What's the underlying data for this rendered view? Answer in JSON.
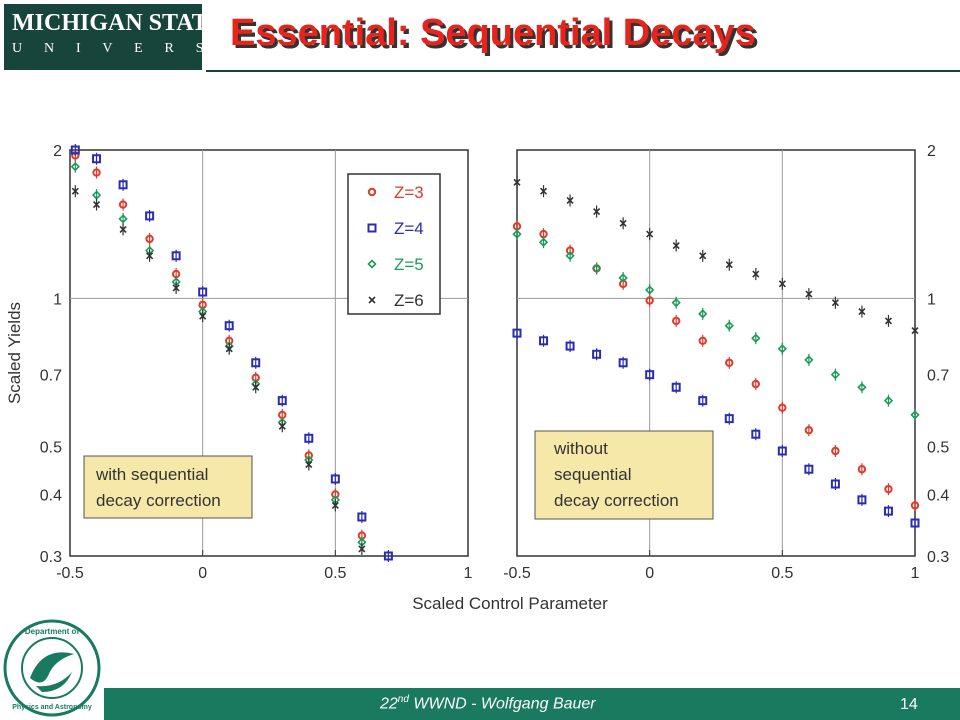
{
  "header": {
    "logo_line1": "MICHIGAN STATE",
    "logo_line2": "U N I V E R S I T Y",
    "title": "Essential: Sequential Decays"
  },
  "footer": {
    "edition": "22",
    "edition_suffix": "nd",
    "rest": " WWND - Wolfgang Bauer",
    "page": "14"
  },
  "seal": {
    "text": "Department of Physics and Astronomy"
  },
  "colors": {
    "Z=3": "#e03a2a",
    "Z=4": "#2b2db0",
    "Z=5": "#1d9a5a",
    "Z=6": "#333333",
    "brand": "#18453b",
    "footer": "#1a7a60",
    "title": "#e8231b"
  },
  "chart_data": [
    {
      "type": "scatter",
      "panel": "left",
      "xlabel": "Scaled Control Parameter",
      "ylabel": "Scaled Yields",
      "xlim": [
        -0.5,
        1
      ],
      "ylim": [
        0.3,
        2
      ],
      "yscale": "log",
      "xticks": [
        "-0.5",
        "0",
        "0.5",
        "1"
      ],
      "yticks": [
        "2",
        "1",
        "0.7",
        "0.5",
        "0.4",
        "0.3"
      ],
      "grid": true,
      "legend_position": "top-right",
      "annotation": [
        "with sequential",
        "decay correction"
      ],
      "series": [
        {
          "name": "Z=3",
          "marker": "circle",
          "x": [
            -0.48,
            -0.4,
            -0.3,
            -0.2,
            -0.1,
            0,
            0.1,
            0.2,
            0.3,
            0.4,
            0.5,
            0.6
          ],
          "y": [
            1.95,
            1.8,
            1.55,
            1.32,
            1.12,
            0.97,
            0.82,
            0.69,
            0.58,
            0.48,
            0.4,
            0.33
          ]
        },
        {
          "name": "Z=4",
          "marker": "square",
          "x": [
            -0.48,
            -0.4,
            -0.3,
            -0.2,
            -0.1,
            0,
            0.1,
            0.2,
            0.3,
            0.4,
            0.5,
            0.6,
            0.7
          ],
          "y": [
            2.0,
            1.92,
            1.7,
            1.47,
            1.22,
            1.03,
            0.88,
            0.74,
            0.62,
            0.52,
            0.43,
            0.36,
            0.3
          ]
        },
        {
          "name": "Z=5",
          "marker": "diamond",
          "x": [
            -0.48,
            -0.4,
            -0.3,
            -0.2,
            -0.1,
            0,
            0.1,
            0.2,
            0.3,
            0.4,
            0.5,
            0.6
          ],
          "y": [
            1.85,
            1.62,
            1.45,
            1.25,
            1.08,
            0.94,
            0.8,
            0.67,
            0.56,
            0.47,
            0.39,
            0.32
          ]
        },
        {
          "name": "Z=6",
          "marker": "x",
          "x": [
            -0.48,
            -0.4,
            -0.3,
            -0.2,
            -0.1,
            0,
            0.1,
            0.2,
            0.3,
            0.4,
            0.5,
            0.6
          ],
          "y": [
            1.65,
            1.55,
            1.38,
            1.22,
            1.05,
            0.92,
            0.79,
            0.66,
            0.55,
            0.46,
            0.38,
            0.31
          ]
        }
      ]
    },
    {
      "type": "scatter",
      "panel": "right",
      "xlim": [
        -0.5,
        1
      ],
      "ylim": [
        0.3,
        2
      ],
      "yscale": "log",
      "xticks": [
        "-0.5",
        "0",
        "0.5",
        "1"
      ],
      "yticks": [
        "2",
        "1",
        "0.7",
        "0.5",
        "0.4",
        "0.3"
      ],
      "grid": true,
      "annotation": [
        "without",
        "sequential",
        "decay correction"
      ],
      "series": [
        {
          "name": "Z=3",
          "marker": "circle",
          "x": [
            -0.5,
            -0.4,
            -0.3,
            -0.2,
            -0.1,
            0,
            0.1,
            0.2,
            0.3,
            0.4,
            0.5,
            0.6,
            0.7,
            0.8,
            0.9,
            1.0
          ],
          "y": [
            1.4,
            1.35,
            1.25,
            1.15,
            1.07,
            0.99,
            0.9,
            0.82,
            0.74,
            0.67,
            0.6,
            0.54,
            0.49,
            0.45,
            0.41,
            0.38
          ]
        },
        {
          "name": "Z=4",
          "marker": "square",
          "x": [
            -0.5,
            -0.4,
            -0.3,
            -0.2,
            -0.1,
            0,
            0.1,
            0.2,
            0.3,
            0.4,
            0.5,
            0.6,
            0.7,
            0.8,
            0.9,
            1.0
          ],
          "y": [
            0.85,
            0.82,
            0.8,
            0.77,
            0.74,
            0.7,
            0.66,
            0.62,
            0.57,
            0.53,
            0.49,
            0.45,
            0.42,
            0.39,
            0.37,
            0.35
          ]
        },
        {
          "name": "Z=5",
          "marker": "diamond",
          "x": [
            -0.5,
            -0.4,
            -0.3,
            -0.2,
            -0.1,
            0,
            0.1,
            0.2,
            0.3,
            0.4,
            0.5,
            0.6,
            0.7,
            0.8,
            0.9,
            1.0
          ],
          "y": [
            1.35,
            1.3,
            1.22,
            1.15,
            1.1,
            1.04,
            0.98,
            0.93,
            0.88,
            0.83,
            0.79,
            0.75,
            0.7,
            0.66,
            0.62,
            0.58
          ]
        },
        {
          "name": "Z=6",
          "marker": "x",
          "x": [
            -0.5,
            -0.4,
            -0.3,
            -0.2,
            -0.1,
            0,
            0.1,
            0.2,
            0.3,
            0.4,
            0.5,
            0.6,
            0.7,
            0.8,
            0.9,
            1.0
          ],
          "y": [
            1.72,
            1.65,
            1.58,
            1.5,
            1.42,
            1.35,
            1.28,
            1.22,
            1.17,
            1.12,
            1.07,
            1.02,
            0.98,
            0.94,
            0.9,
            0.86
          ]
        }
      ]
    }
  ]
}
